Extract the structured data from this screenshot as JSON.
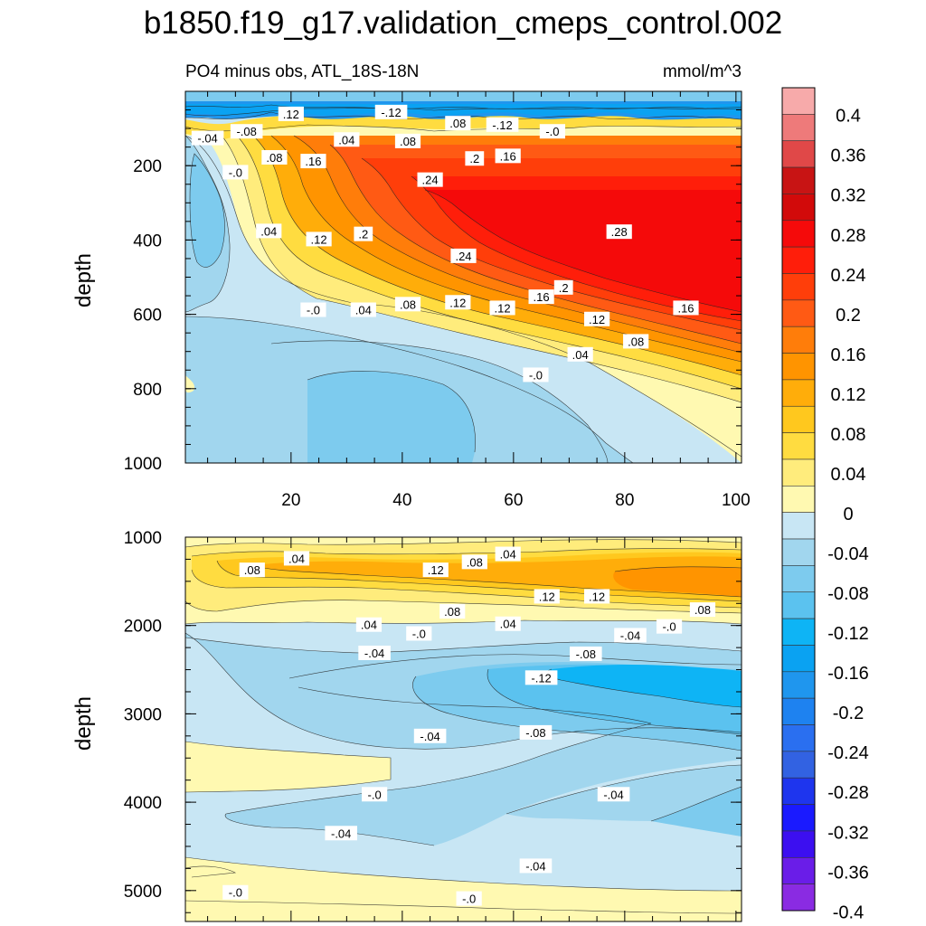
{
  "chart_data": {
    "type": "contour",
    "title": "b1850.f19_g17.validation_cmeps_control.002",
    "subtitle_left": "PO4 minus obs, ATL_18S-18N",
    "subtitle_right": "mmol/m^3",
    "colorbar": {
      "levels": [
        -0.4,
        -0.36,
        -0.32,
        -0.28,
        -0.24,
        -0.2,
        -0.16,
        -0.12,
        -0.08,
        -0.04,
        0,
        0.04,
        0.08,
        0.12,
        0.16,
        0.2,
        0.24,
        0.28,
        0.32,
        0.36,
        0.4
      ],
      "labels": [
        "-0.4",
        "-0.36",
        "-0.32",
        "-0.28",
        "-0.24",
        "-0.2",
        "-0.16",
        "-0.12",
        "-0.08",
        "-0.04",
        "0",
        "0.04",
        "0.08",
        "0.12",
        "0.16",
        "0.2",
        "0.24",
        "0.28",
        "0.32",
        "0.36",
        "0.4"
      ],
      "colors": [
        "#8a2be2",
        "#6a1de8",
        "#3c0ff0",
        "#1a1aff",
        "#1e35ee",
        "#3262e2",
        "#2a6ff0",
        "#1e82f0",
        "#1f96ee",
        "#0aa2f2",
        "#0eb4f5",
        "#5bc2ef",
        "#7dcbee",
        "#a1d6ee",
        "#c8e6f4",
        "#fff9b1",
        "#ffec7c",
        "#ffdc40",
        "#ffc81e",
        "#ffad0a",
        "#ff9400",
        "#ff7d0a",
        "#ff5a14",
        "#ff3e0a",
        "#ff1e0a",
        "#f50a0a",
        "#d20a0a",
        "#c81414",
        "#e04848",
        "#ee7a7a",
        "#f7aaaa"
      ]
    },
    "panels": [
      {
        "name": "upper",
        "ylabel": "depth",
        "xlim": [
          1,
          101
        ],
        "ylim": [
          1000,
          0
        ],
        "xticks": [
          20,
          40,
          60,
          80,
          100
        ],
        "xtick_labels": [
          "20",
          "40",
          "60",
          "80",
          "100"
        ],
        "yticks": [
          200,
          400,
          600,
          800,
          1000
        ],
        "ytick_labels": [
          "200",
          "400",
          "600",
          "800",
          "1000"
        ],
        "contour_labels": [
          {
            "x": 5,
            "y": 128,
            "text": "-.04"
          },
          {
            "x": 12,
            "y": 110,
            "text": "-.08"
          },
          {
            "x": 20,
            "y": 63,
            "text": ".12"
          },
          {
            "x": 38,
            "y": 58,
            "text": "-.12"
          },
          {
            "x": 50,
            "y": 88,
            "text": ".08"
          },
          {
            "x": 58,
            "y": 92,
            "text": "-.12"
          },
          {
            "x": 67,
            "y": 110,
            "text": "-.0"
          },
          {
            "x": 30,
            "y": 132,
            "text": ".04"
          },
          {
            "x": 41,
            "y": 136,
            "text": ".08"
          },
          {
            "x": 17,
            "y": 180,
            "text": ".08"
          },
          {
            "x": 24,
            "y": 190,
            "text": ".16"
          },
          {
            "x": 10,
            "y": 220,
            "text": "-.0"
          },
          {
            "x": 45,
            "y": 240,
            "text": ".24"
          },
          {
            "x": 53,
            "y": 183,
            "text": ".2"
          },
          {
            "x": 59,
            "y": 176,
            "text": ".16"
          },
          {
            "x": 16,
            "y": 378,
            "text": ".04"
          },
          {
            "x": 25,
            "y": 400,
            "text": ".12"
          },
          {
            "x": 33,
            "y": 386,
            "text": ".2"
          },
          {
            "x": 79,
            "y": 380,
            "text": ".28"
          },
          {
            "x": 51,
            "y": 445,
            "text": ".24"
          },
          {
            "x": 69,
            "y": 530,
            "text": ".2"
          },
          {
            "x": 65,
            "y": 555,
            "text": ".16"
          },
          {
            "x": 91,
            "y": 585,
            "text": ".16"
          },
          {
            "x": 24,
            "y": 590,
            "text": "-.0"
          },
          {
            "x": 33,
            "y": 590,
            "text": ".04"
          },
          {
            "x": 41,
            "y": 575,
            "text": ".08"
          },
          {
            "x": 50,
            "y": 570,
            "text": ".12"
          },
          {
            "x": 58,
            "y": 585,
            "text": ".12"
          },
          {
            "x": 75,
            "y": 615,
            "text": ".12"
          },
          {
            "x": 82,
            "y": 675,
            "text": ".08"
          },
          {
            "x": 72,
            "y": 710,
            "text": ".04"
          },
          {
            "x": 64,
            "y": 765,
            "text": "-.0"
          }
        ]
      },
      {
        "name": "lower",
        "ylabel": "depth",
        "xlim": [
          1,
          101
        ],
        "ylim": [
          5350,
          1000
        ],
        "yticks": [
          1000,
          2000,
          3000,
          4000,
          5000
        ],
        "ytick_labels": [
          "1000",
          "2000",
          "3000",
          "4000",
          "5000"
        ],
        "contour_labels": [
          {
            "x": 13,
            "y": 1380,
            "text": ".08"
          },
          {
            "x": 21,
            "y": 1250,
            "text": ".04"
          },
          {
            "x": 46,
            "y": 1380,
            "text": ".12"
          },
          {
            "x": 53,
            "y": 1290,
            "text": ".08"
          },
          {
            "x": 59,
            "y": 1200,
            "text": ".04"
          },
          {
            "x": 66,
            "y": 1680,
            "text": ".12"
          },
          {
            "x": 75,
            "y": 1680,
            "text": ".12"
          },
          {
            "x": 94,
            "y": 1830,
            "text": ".08"
          },
          {
            "x": 49,
            "y": 1850,
            "text": ".08"
          },
          {
            "x": 59,
            "y": 1990,
            "text": ".04"
          },
          {
            "x": 34,
            "y": 2000,
            "text": ".04"
          },
          {
            "x": 43,
            "y": 2100,
            "text": "-.0"
          },
          {
            "x": 81,
            "y": 2120,
            "text": "-.04"
          },
          {
            "x": 88,
            "y": 2020,
            "text": "-.0"
          },
          {
            "x": 73,
            "y": 2330,
            "text": "-.08"
          },
          {
            "x": 35,
            "y": 2320,
            "text": "-.04"
          },
          {
            "x": 65,
            "y": 2600,
            "text": "-.12"
          },
          {
            "x": 45,
            "y": 3260,
            "text": "-.04"
          },
          {
            "x": 64,
            "y": 3220,
            "text": "-.08"
          },
          {
            "x": 35,
            "y": 3920,
            "text": "-.0"
          },
          {
            "x": 78,
            "y": 3920,
            "text": "-.04"
          },
          {
            "x": 29,
            "y": 4360,
            "text": "-.04"
          },
          {
            "x": 64,
            "y": 4730,
            "text": "-.04"
          },
          {
            "x": 10,
            "y": 5030,
            "text": "-.0"
          },
          {
            "x": 52,
            "y": 5100,
            "text": "-.0"
          }
        ]
      }
    ]
  }
}
